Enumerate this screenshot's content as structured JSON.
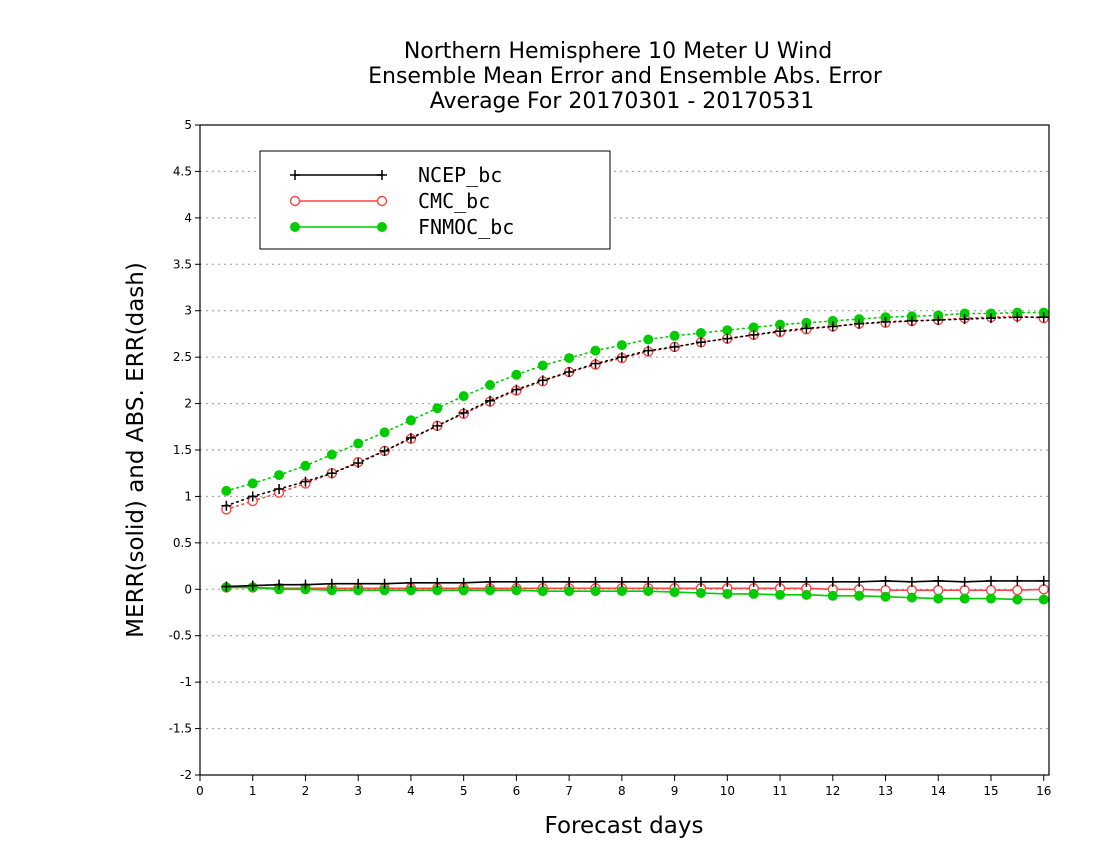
{
  "chart_data": {
    "type": "line",
    "title": [
      "Northern Hemisphere 10 Meter U Wind",
      "Ensemble Mean Error and Ensemble Abs. Error",
      "Average For 20170301 - 20170531"
    ],
    "xlabel": "Forecast days",
    "ylabel": "MERR(solid) and ABS. ERR(dash)",
    "xlim": [
      0,
      16.1
    ],
    "ylim": [
      -2,
      5
    ],
    "xticks": [
      "0",
      "1",
      "2",
      "3",
      "4",
      "5",
      "6",
      "7",
      "8",
      "9",
      "10",
      "11",
      "12",
      "13",
      "14",
      "15",
      "16"
    ],
    "yticks": [
      "-2",
      "-1.5",
      "-1",
      "-0.5",
      "0",
      "0.5",
      "1",
      "1.5",
      "2",
      "2.5",
      "3",
      "3.5",
      "4",
      "4.5",
      "5"
    ],
    "grid": "horizontal dotted",
    "legend_position": "top-left",
    "x": [
      0.5,
      1,
      1.5,
      2,
      2.5,
      3,
      3.5,
      4,
      4.5,
      5,
      5.5,
      6,
      6.5,
      7,
      7.5,
      8,
      8.5,
      9,
      9.5,
      10,
      10.5,
      11,
      11.5,
      12,
      12.5,
      13,
      13.5,
      14,
      14.5,
      15,
      15.5,
      16
    ],
    "series": [
      {
        "name": "NCEP_bc",
        "color": "#000000",
        "marker": "plus",
        "merr": [
          0.03,
          0.04,
          0.05,
          0.05,
          0.06,
          0.06,
          0.06,
          0.07,
          0.07,
          0.07,
          0.08,
          0.08,
          0.08,
          0.08,
          0.08,
          0.08,
          0.08,
          0.08,
          0.08,
          0.08,
          0.08,
          0.08,
          0.08,
          0.08,
          0.08,
          0.09,
          0.08,
          0.09,
          0.08,
          0.09,
          0.09,
          0.09
        ],
        "abs_err": [
          0.9,
          1.0,
          1.08,
          1.16,
          1.25,
          1.36,
          1.49,
          1.63,
          1.76,
          1.9,
          2.03,
          2.15,
          2.25,
          2.34,
          2.43,
          2.5,
          2.57,
          2.61,
          2.66,
          2.7,
          2.74,
          2.78,
          2.81,
          2.83,
          2.86,
          2.88,
          2.89,
          2.9,
          2.91,
          2.92,
          2.93,
          2.93
        ]
      },
      {
        "name": "CMC_bc",
        "color": "#ff4444",
        "marker": "open-circle",
        "merr": [
          0.02,
          0.02,
          0.01,
          0.01,
          0.01,
          0.01,
          0.01,
          0.01,
          0.01,
          0.01,
          0.01,
          0.01,
          0.01,
          0.01,
          0.01,
          0.01,
          0.01,
          0.01,
          0.01,
          0.01,
          0.01,
          0.01,
          0.01,
          0.0,
          0.0,
          -0.01,
          -0.01,
          -0.01,
          -0.01,
          -0.01,
          -0.01,
          0.0
        ],
        "abs_err": [
          0.86,
          0.95,
          1.04,
          1.14,
          1.25,
          1.37,
          1.49,
          1.62,
          1.76,
          1.89,
          2.02,
          2.14,
          2.24,
          2.34,
          2.42,
          2.49,
          2.56,
          2.61,
          2.66,
          2.7,
          2.74,
          2.77,
          2.8,
          2.83,
          2.86,
          2.87,
          2.89,
          2.9,
          2.92,
          2.93,
          2.94,
          2.92
        ]
      },
      {
        "name": "FNMOC_bc",
        "color": "#00cc00",
        "marker": "filled-circle",
        "merr": [
          0.02,
          0.02,
          0.0,
          0.0,
          -0.01,
          -0.01,
          -0.01,
          -0.01,
          -0.01,
          -0.01,
          -0.01,
          -0.01,
          -0.02,
          -0.02,
          -0.02,
          -0.02,
          -0.02,
          -0.03,
          -0.04,
          -0.05,
          -0.05,
          -0.06,
          -0.06,
          -0.07,
          -0.07,
          -0.08,
          -0.09,
          -0.1,
          -0.1,
          -0.1,
          -0.11,
          -0.11
        ],
        "abs_err": [
          1.06,
          1.14,
          1.23,
          1.33,
          1.45,
          1.57,
          1.69,
          1.82,
          1.95,
          2.08,
          2.2,
          2.31,
          2.41,
          2.49,
          2.57,
          2.63,
          2.69,
          2.73,
          2.76,
          2.79,
          2.82,
          2.85,
          2.87,
          2.89,
          2.91,
          2.93,
          2.94,
          2.95,
          2.97,
          2.97,
          2.98,
          2.98
        ]
      }
    ]
  }
}
